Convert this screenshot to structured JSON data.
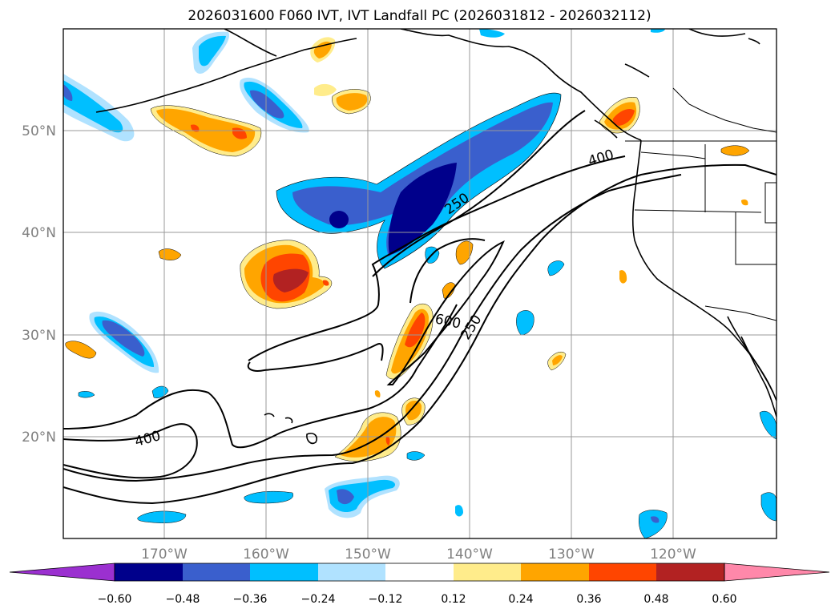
{
  "title": "2026031600 F060 IVT, IVT Landfall PC (2026031812 - 2026032112)",
  "lat_labels": [
    "50°N",
    "40°N",
    "30°N",
    "20°N"
  ],
  "lon_labels": [
    "170°W",
    "160°W",
    "150°W",
    "140°W",
    "130°W",
    "120°W"
  ],
  "colorbar": {
    "ticks": [
      "−0.60",
      "−0.48",
      "−0.36",
      "−0.24",
      "−0.12",
      "0.12",
      "0.24",
      "0.36",
      "0.48",
      "0.60"
    ],
    "colors": [
      "#9b30d0",
      "#00008b",
      "#3a5fcd",
      "#00bfff",
      "#b0e2ff",
      "#ffffff",
      "#ffec8b",
      "#ffa500",
      "#ff4500",
      "#b22222",
      "#ff88aa"
    ]
  },
  "contour_labels": [
    "250",
    "400",
    "600",
    "250",
    "400"
  ],
  "colors": {
    "dark_blue": "#00008b",
    "royal_blue": "#3a5fcd",
    "deep_sky": "#00bfff",
    "light_sky": "#b0e2ff",
    "light_yellow": "#ffec8b",
    "orange": "#ffa500",
    "orange_red": "#ff4500",
    "firebrick": "#b22222"
  }
}
